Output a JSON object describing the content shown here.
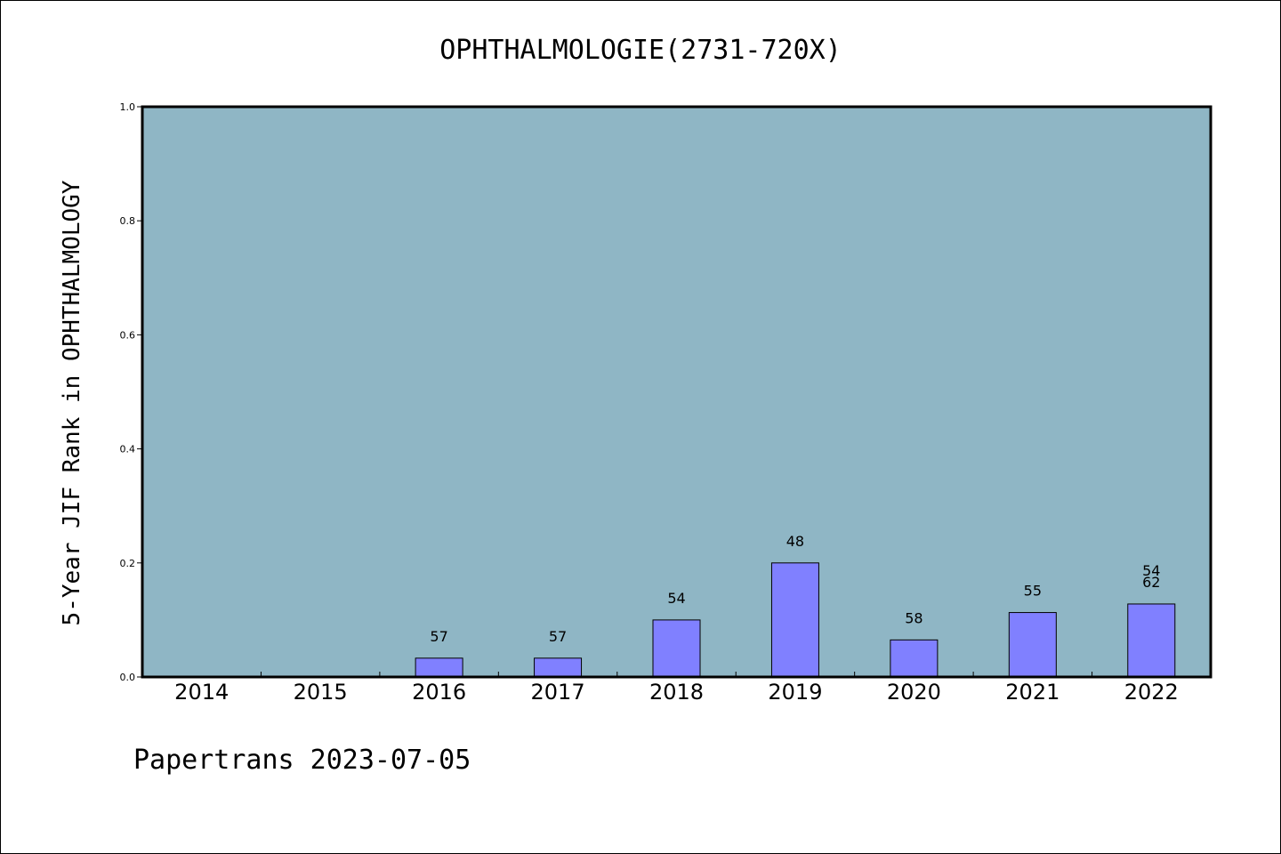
{
  "chart_data": {
    "type": "bar",
    "title": "OPHTHALMOLOGIE(2731-720X)",
    "ylabel": "5-Year JIF Rank in OPHTHALMOLOGY",
    "xlabel": "",
    "categories": [
      "2014",
      "2015",
      "2016",
      "2017",
      "2018",
      "2019",
      "2020",
      "2021",
      "2022"
    ],
    "values": [
      0,
      0,
      0.033,
      0.033,
      0.1,
      0.2,
      0.065,
      0.113,
      0.128
    ],
    "data_labels": [
      "",
      "",
      "57",
      "57",
      "54",
      "48",
      "58",
      "55",
      "62"
    ],
    "extra_labels": {
      "2022": "54"
    },
    "ylim": [
      0,
      1.0
    ],
    "yticks": [
      "0.0",
      "0.2",
      "0.4",
      "0.6",
      "0.8",
      "1.0"
    ],
    "grid": false,
    "colors": {
      "plot_background": "#8fb6c5",
      "bar_fill": "#8080ff",
      "bar_edge": "#000000"
    }
  },
  "footer": {
    "text": "Papertrans 2023-07-05"
  }
}
